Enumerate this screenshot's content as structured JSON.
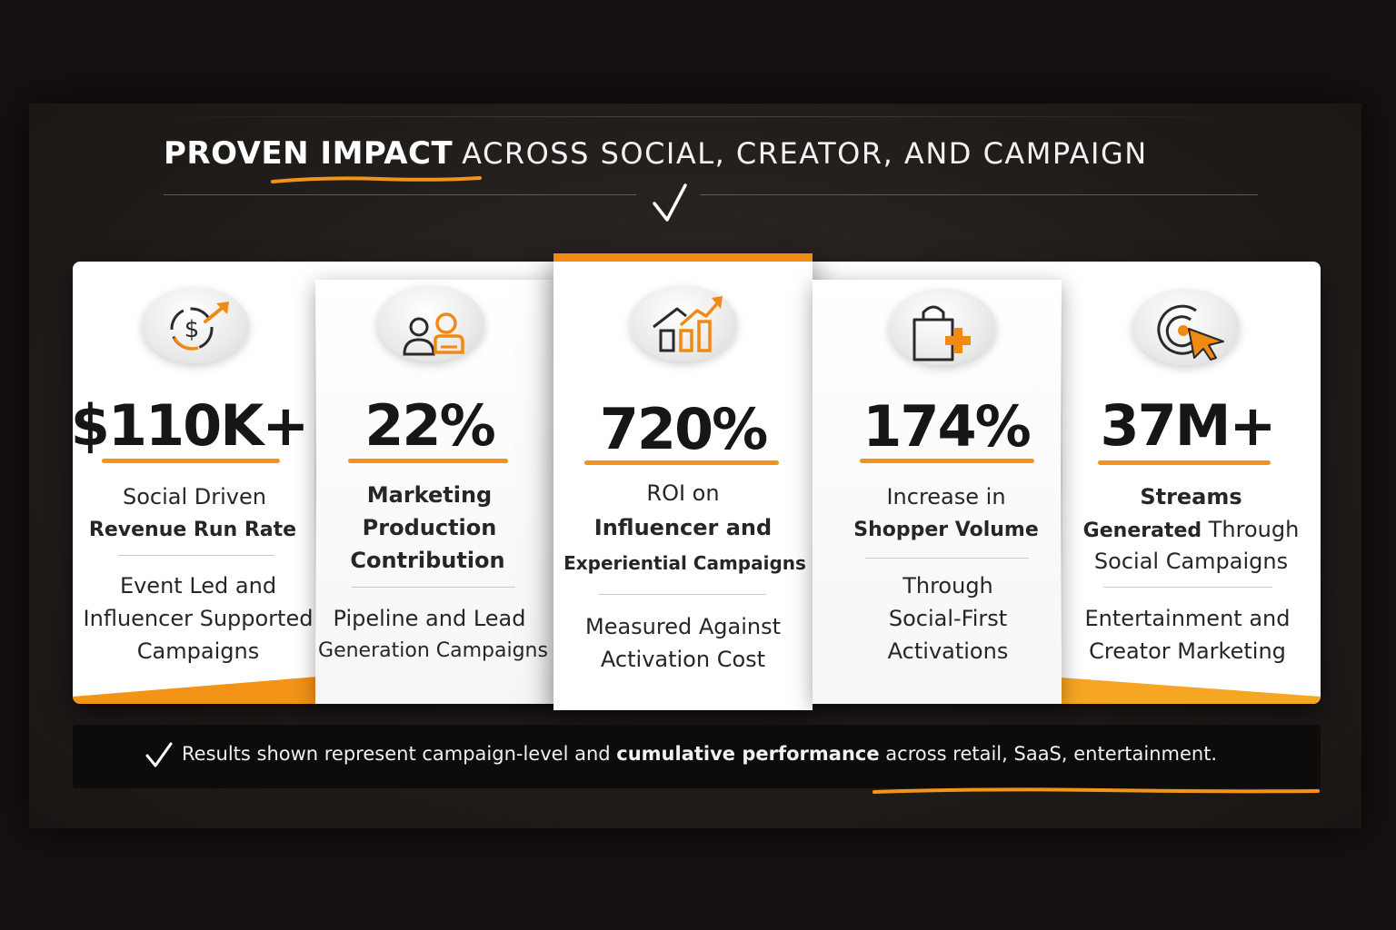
{
  "header": {
    "title_bold": "PROVEN IMPACT",
    "title_light": "ACROSS SOCIAL, CREATOR, AND CAMPAIGN"
  },
  "colors": {
    "accent": "#f08a12",
    "background": "#1a1614",
    "card": "#ffffff",
    "text": "#1c1c1c"
  },
  "metrics": [
    {
      "icon": "dollar-growth-icon",
      "value": "$110K+",
      "label_lines": [
        "Social Driven",
        "Revenue Run Rate"
      ],
      "detail_lines": [
        "Event Led and",
        "Influencer Supported",
        "Campaigns"
      ]
    },
    {
      "icon": "people-icon",
      "value": "22%",
      "label_lines": [
        "Marketing",
        "Production",
        "Contribution"
      ],
      "detail_lines": [
        "Pipeline and Lead",
        "Generation Campaigns"
      ]
    },
    {
      "icon": "growth-chart-icon",
      "value": "720%",
      "label_lines": [
        "ROI on",
        "Influencer and",
        "Experiential Campaigns"
      ],
      "detail_lines": [
        "Measured Against",
        "Activation Cost"
      ]
    },
    {
      "icon": "shopping-bag-plus-icon",
      "value": "174%",
      "label_lines": [
        "Increase in",
        "Shopper Volume"
      ],
      "detail_lines": [
        "Through",
        "Social-First",
        "Activations"
      ]
    },
    {
      "icon": "target-cursor-icon",
      "value": "37M+",
      "label_lines": [
        "Streams",
        "Social Campaigns"
      ],
      "label_mixed": {
        "bold": "Generated",
        "regular": " Through"
      },
      "detail_lines": [
        "Entertainment and",
        "Creator Marketing"
      ]
    }
  ],
  "footer": {
    "icon": "checkmark-icon",
    "text_1": "Results shown represent campaign-level and ",
    "text_bold": "cumulative performance",
    "text_2": " across retail, SaaS, entertainment."
  }
}
